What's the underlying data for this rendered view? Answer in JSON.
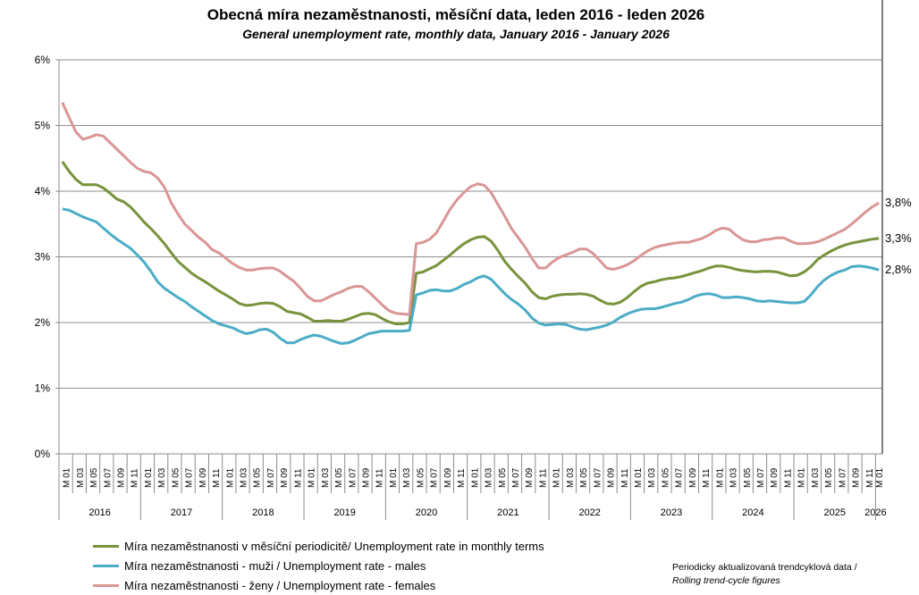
{
  "chart_data": {
    "type": "line",
    "title": "Obecná míra nezaměstnanosti, měsíční data, leden 2016 - leden 2026",
    "subtitle": "General unemployment rate, monthly data, January 2016 - January 2026",
    "xlabel": "",
    "ylabel": "",
    "ylim": [
      0,
      6
    ],
    "y_ticks": [
      "0%",
      "1%",
      "2%",
      "3%",
      "4%",
      "5%",
      "6%"
    ],
    "x_start": "2016-01",
    "x_end": "2026-01",
    "month_labels": [
      "M 01",
      "M 03",
      "M 05",
      "M 07",
      "M 09",
      "M 11"
    ],
    "years": [
      "2016",
      "2017",
      "2018",
      "2019",
      "2020",
      "2021",
      "2022",
      "2023",
      "2024",
      "2025",
      "2026"
    ],
    "grid": "horizontal",
    "legend_position": "bottom-left",
    "end_labels": [
      "3,8%",
      "3,3%",
      "2,8%"
    ],
    "series": [
      {
        "name": "Míra nezaměstnanosti v měsíční periodicitě/ Unemployment rate in monthly terms",
        "color": "#77933C",
        "values": [
          4.45,
          4.3,
          4.18,
          4.1,
          4.1,
          4.1,
          4.05,
          3.97,
          3.88,
          3.84,
          3.76,
          3.65,
          3.53,
          3.43,
          3.32,
          3.2,
          3.06,
          2.93,
          2.84,
          2.75,
          2.68,
          2.62,
          2.55,
          2.48,
          2.42,
          2.36,
          2.29,
          2.26,
          2.27,
          2.29,
          2.3,
          2.29,
          2.24,
          2.17,
          2.15,
          2.13,
          2.08,
          2.02,
          2.02,
          2.03,
          2.02,
          2.02,
          2.05,
          2.09,
          2.13,
          2.14,
          2.12,
          2.06,
          2.01,
          1.98,
          1.98,
          2.0,
          2.75,
          2.77,
          2.82,
          2.87,
          2.95,
          3.03,
          3.12,
          3.2,
          3.26,
          3.3,
          3.31,
          3.24,
          3.1,
          2.93,
          2.81,
          2.7,
          2.6,
          2.47,
          2.38,
          2.36,
          2.4,
          2.42,
          2.43,
          2.43,
          2.44,
          2.43,
          2.4,
          2.34,
          2.29,
          2.28,
          2.31,
          2.38,
          2.47,
          2.55,
          2.6,
          2.62,
          2.65,
          2.67,
          2.68,
          2.7,
          2.73,
          2.76,
          2.79,
          2.83,
          2.86,
          2.86,
          2.84,
          2.81,
          2.79,
          2.78,
          2.77,
          2.78,
          2.78,
          2.77,
          2.74,
          2.71,
          2.72,
          2.77,
          2.85,
          2.96,
          3.03,
          3.09,
          3.14,
          3.18,
          3.21,
          3.23,
          3.25,
          3.27,
          3.28
        ]
      },
      {
        "name": "Míra nezaměstnanosti - muži / Unemployment rate - males",
        "color": "#4BACC6",
        "values": [
          3.73,
          3.71,
          3.66,
          3.61,
          3.57,
          3.53,
          3.44,
          3.35,
          3.27,
          3.2,
          3.13,
          3.03,
          2.92,
          2.78,
          2.62,
          2.52,
          2.45,
          2.38,
          2.32,
          2.24,
          2.17,
          2.1,
          2.03,
          1.98,
          1.95,
          1.92,
          1.87,
          1.83,
          1.85,
          1.89,
          1.9,
          1.85,
          1.76,
          1.69,
          1.69,
          1.74,
          1.78,
          1.81,
          1.79,
          1.75,
          1.71,
          1.68,
          1.69,
          1.73,
          1.78,
          1.83,
          1.85,
          1.87,
          1.87,
          1.87,
          1.87,
          1.88,
          2.42,
          2.45,
          2.49,
          2.5,
          2.48,
          2.48,
          2.52,
          2.58,
          2.62,
          2.68,
          2.71,
          2.66,
          2.55,
          2.44,
          2.35,
          2.28,
          2.19,
          2.07,
          1.99,
          1.96,
          1.97,
          1.98,
          1.97,
          1.93,
          1.9,
          1.89,
          1.91,
          1.93,
          1.96,
          2.01,
          2.08,
          2.13,
          2.17,
          2.2,
          2.21,
          2.21,
          2.23,
          2.26,
          2.29,
          2.31,
          2.35,
          2.4,
          2.43,
          2.44,
          2.42,
          2.38,
          2.38,
          2.39,
          2.38,
          2.36,
          2.33,
          2.32,
          2.33,
          2.32,
          2.31,
          2.3,
          2.3,
          2.32,
          2.42,
          2.55,
          2.65,
          2.72,
          2.77,
          2.8,
          2.85,
          2.86,
          2.85,
          2.83,
          2.8
        ]
      },
      {
        "name": "Míra nezaměstnanosti - ženy / Unemployment rate - females",
        "color": "#D99694",
        "values": [
          5.35,
          5.12,
          4.9,
          4.79,
          4.82,
          4.86,
          4.84,
          4.74,
          4.64,
          4.54,
          4.44,
          4.35,
          4.3,
          4.28,
          4.2,
          4.06,
          3.82,
          3.65,
          3.5,
          3.4,
          3.3,
          3.22,
          3.11,
          3.06,
          2.98,
          2.9,
          2.84,
          2.8,
          2.8,
          2.82,
          2.83,
          2.83,
          2.78,
          2.7,
          2.63,
          2.52,
          2.4,
          2.33,
          2.33,
          2.38,
          2.43,
          2.47,
          2.52,
          2.55,
          2.55,
          2.47,
          2.37,
          2.27,
          2.18,
          2.14,
          2.13,
          2.12,
          3.2,
          3.22,
          3.27,
          3.37,
          3.55,
          3.73,
          3.87,
          3.98,
          4.07,
          4.11,
          4.09,
          3.98,
          3.8,
          3.62,
          3.43,
          3.29,
          3.15,
          2.98,
          2.83,
          2.83,
          2.92,
          2.99,
          3.03,
          3.07,
          3.12,
          3.12,
          3.05,
          2.94,
          2.83,
          2.81,
          2.84,
          2.88,
          2.94,
          3.02,
          3.09,
          3.14,
          3.17,
          3.19,
          3.21,
          3.22,
          3.22,
          3.25,
          3.28,
          3.33,
          3.4,
          3.44,
          3.42,
          3.33,
          3.26,
          3.23,
          3.23,
          3.26,
          3.27,
          3.29,
          3.29,
          3.24,
          3.2,
          3.2,
          3.21,
          3.23,
          3.27,
          3.32,
          3.37,
          3.42,
          3.5,
          3.59,
          3.68,
          3.76,
          3.82
        ]
      }
    ]
  },
  "note": {
    "line1": "Periodicky aktualizovaná trendcyklová data /",
    "line2": "Rolling trend-cycle figures"
  }
}
